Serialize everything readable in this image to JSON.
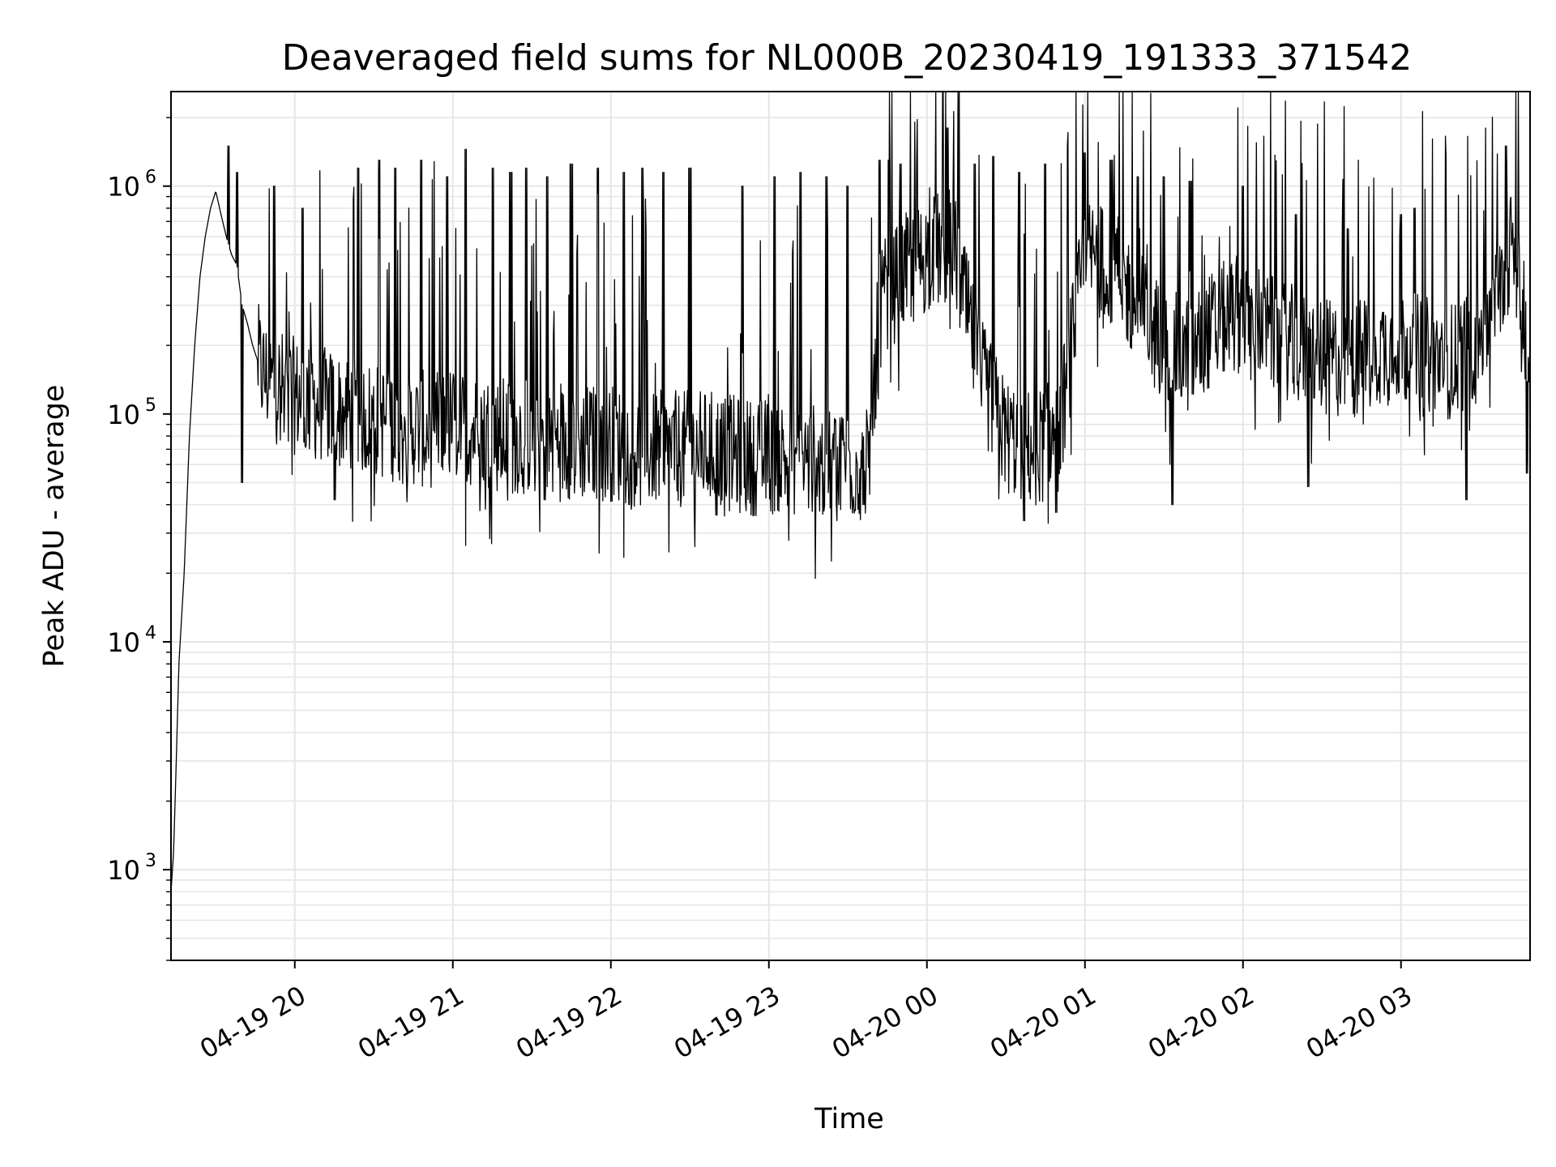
{
  "chart_data": {
    "type": "line",
    "title": "Deaveraged field sums for NL000B_20230419_191333_371542",
    "xlabel": "Time",
    "ylabel": "Peak ADU - average",
    "y_scale": "log",
    "ylim": [
      400,
      2600000
    ],
    "xlim": [
      "04-19 19:13",
      "04-20 03:49"
    ],
    "grid": true,
    "x_tick_labels": [
      "04-19 20",
      "04-19 21",
      "04-19 22",
      "04-19 23",
      "04-20 00",
      "04-20 01",
      "04-20 02",
      "04-20 03"
    ],
    "x_tick_times": [
      "04-19 20:00",
      "04-19 21:00",
      "04-19 22:00",
      "04-19 23:00",
      "04-20 00:00",
      "04-20 01:00",
      "04-20 02:00",
      "04-20 03:00"
    ],
    "y_tick_values": [
      1000,
      10000,
      100000,
      1000000
    ],
    "y_tick_labels": [
      {
        "base": "10",
        "exp": "3"
      },
      {
        "base": "10",
        "exp": "4"
      },
      {
        "base": "10",
        "exp": "5"
      },
      {
        "base": "10",
        "exp": "6"
      }
    ],
    "series": [
      {
        "color": "#000000",
        "x": [
          "04-19 19:13",
          "04-19 19:14",
          "04-19 19:15",
          "04-19 19:16",
          "04-19 19:18",
          "04-19 19:20",
          "04-19 19:22",
          "04-19 19:24",
          "04-19 19:26",
          "04-19 19:28",
          "04-19 19:30",
          "04-19 19:32",
          "04-19 19:34",
          "04-19 19:36",
          "04-19 19:38",
          "04-19 19:40",
          "04-19 19:42",
          "04-19 19:44",
          "04-19 19:46",
          "04-19 19:48",
          "04-19 19:50",
          "04-19 19:55",
          "04-19 20:00",
          "04-19 20:10",
          "04-19 20:20",
          "04-19 20:30",
          "04-19 20:40",
          "04-19 20:50",
          "04-19 21:00",
          "04-19 21:10",
          "04-19 21:20",
          "04-19 21:30",
          "04-19 21:40",
          "04-19 21:50",
          "04-19 22:00",
          "04-19 22:10",
          "04-19 22:20",
          "04-19 22:30",
          "04-19 22:40",
          "04-19 22:50",
          "04-19 23:00",
          "04-19 23:10",
          "04-19 23:20",
          "04-19 23:30",
          "04-19 23:38",
          "04-19 23:42",
          "04-19 23:50",
          "04-20 00:00",
          "04-20 00:10",
          "04-20 00:20",
          "04-20 00:30",
          "04-20 00:40",
          "04-20 00:50",
          "04-20 01:00",
          "04-20 01:10",
          "04-20 01:20",
          "04-20 01:30",
          "04-20 01:40",
          "04-20 01:50",
          "04-20 02:00",
          "04-20 02:10",
          "04-20 02:20",
          "04-20 02:30",
          "04-20 02:40",
          "04-20 02:50",
          "04-20 03:00",
          "04-20 03:10",
          "04-20 03:20",
          "04-20 03:30",
          "04-20 03:38",
          "04-20 03:42",
          "04-20 03:46",
          "04-20 03:49"
        ],
        "y": [
          800,
          1200,
          3000,
          8000,
          20000,
          80000,
          200000,
          400000,
          600000,
          800000,
          950000,
          750000,
          600000,
          500000,
          450000,
          300000,
          250000,
          200000,
          170000,
          150000,
          140000,
          130000,
          120000,
          110000,
          100000,
          95000,
          90000,
          85000,
          90000,
          85000,
          80000,
          80000,
          75000,
          75000,
          75000,
          70000,
          70000,
          70000,
          70000,
          65000,
          65000,
          65000,
          60000,
          60000,
          60000,
          300000,
          400000,
          500000,
          550000,
          150000,
          80000,
          70000,
          80000,
          500000,
          450000,
          300000,
          200000,
          180000,
          250000,
          280000,
          230000,
          200000,
          180000,
          170000,
          190000,
          200000,
          180000,
          170000,
          220000,
          350000,
          600000,
          300000,
          150000
        ],
        "spikes": [
          {
            "x": "04-19 19:35",
            "y": 1500000
          },
          {
            "x": "04-19 19:38",
            "y": 1150000
          },
          {
            "x": "04-19 19:40",
            "y": 50000
          },
          {
            "x": "04-19 19:52",
            "y": 1000000
          },
          {
            "x": "04-19 20:03",
            "y": 800000
          },
          {
            "x": "04-19 20:24",
            "y": 1200000
          },
          {
            "x": "04-19 20:32",
            "y": 1300000
          },
          {
            "x": "04-19 20:38",
            "y": 1200000
          },
          {
            "x": "04-19 20:48",
            "y": 1300000
          },
          {
            "x": "04-19 20:58",
            "y": 1100000
          },
          {
            "x": "04-19 21:05",
            "y": 1450000
          },
          {
            "x": "04-19 21:15",
            "y": 1200000
          },
          {
            "x": "04-19 21:22",
            "y": 1150000
          },
          {
            "x": "04-19 21:28",
            "y": 1200000
          },
          {
            "x": "04-19 21:36",
            "y": 1100000
          },
          {
            "x": "04-19 21:45",
            "y": 1250000
          },
          {
            "x": "04-19 21:55",
            "y": 1200000
          },
          {
            "x": "04-19 22:05",
            "y": 1150000
          },
          {
            "x": "04-19 22:12",
            "y": 1200000
          },
          {
            "x": "04-19 22:20",
            "y": 1150000
          },
          {
            "x": "04-19 22:30",
            "y": 1200000
          },
          {
            "x": "04-19 22:40",
            "y": 1100000
          },
          {
            "x": "04-19 22:50",
            "y": 1000000
          },
          {
            "x": "04-19 23:02",
            "y": 1100000
          },
          {
            "x": "04-19 23:12",
            "y": 1150000
          },
          {
            "x": "04-19 23:22",
            "y": 1100000
          },
          {
            "x": "04-19 23:30",
            "y": 1000000
          },
          {
            "x": "04-19 23:42",
            "y": 1300000
          },
          {
            "x": "04-19 23:50",
            "y": 1250000
          },
          {
            "x": "04-20 00:08",
            "y": 1800000
          },
          {
            "x": "04-20 00:18",
            "y": 1250000
          },
          {
            "x": "04-20 00:25",
            "y": 1350000
          },
          {
            "x": "04-20 00:35",
            "y": 1150000
          },
          {
            "x": "04-20 00:45",
            "y": 1250000
          },
          {
            "x": "04-20 01:00",
            "y": 1400000
          },
          {
            "x": "04-20 01:10",
            "y": 1300000
          },
          {
            "x": "04-20 01:20",
            "y": 1100000
          },
          {
            "x": "04-20 01:30",
            "y": 1100000
          },
          {
            "x": "04-20 01:40",
            "y": 1050000
          },
          {
            "x": "04-20 02:00",
            "y": 1000000
          },
          {
            "x": "04-20 02:20",
            "y": 750000
          },
          {
            "x": "04-20 02:40",
            "y": 650000
          },
          {
            "x": "04-20 03:00",
            "y": 750000
          },
          {
            "x": "04-20 03:05",
            "y": 800000
          },
          {
            "x": "04-20 03:40",
            "y": 1500000
          },
          {
            "x": "04-19 20:15",
            "y": 42000
          },
          {
            "x": "04-19 21:35",
            "y": 42000
          },
          {
            "x": "04-19 22:40",
            "y": 36000
          },
          {
            "x": "04-19 23:36",
            "y": 40000
          },
          {
            "x": "04-20 00:37",
            "y": 34000
          },
          {
            "x": "04-20 00:49",
            "y": 37000
          },
          {
            "x": "04-20 01:33",
            "y": 40000
          },
          {
            "x": "04-20 02:25",
            "y": 48000
          },
          {
            "x": "04-20 03:25",
            "y": 42000
          },
          {
            "x": "04-20 03:48",
            "y": 55000
          }
        ]
      }
    ]
  }
}
